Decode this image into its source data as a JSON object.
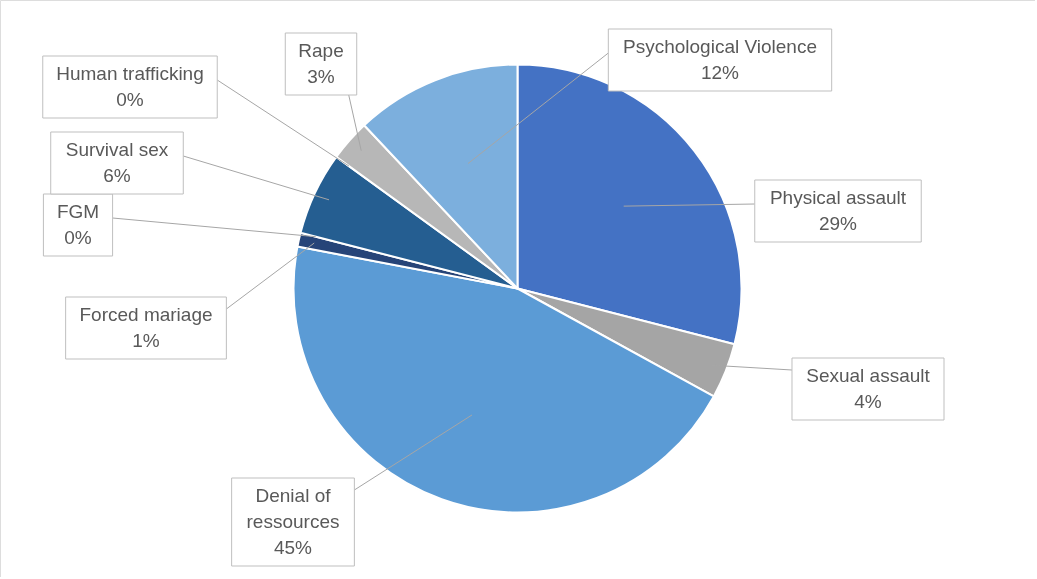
{
  "chart_data": {
    "type": "pie",
    "categories": [
      "Physical assault",
      "Sexual assault",
      "Denial of ressources",
      "Forced mariage",
      "FGM",
      "Survival sex",
      "Human trafficking",
      "Rape",
      "Psychological Violence"
    ],
    "values": [
      29,
      4,
      45,
      1,
      0,
      6,
      0,
      3,
      12
    ],
    "colors": [
      "#4472c4",
      "#a5a5a5",
      "#5b9bd5",
      "#264478",
      "#636363",
      "#255e91",
      "#698ed0",
      "#b7b7b7",
      "#7cafdd"
    ],
    "value_labels": [
      "29%",
      "4%",
      "45%",
      "1%",
      "0%",
      "6%",
      "0%",
      "3%",
      "12%"
    ],
    "legend": false
  }
}
